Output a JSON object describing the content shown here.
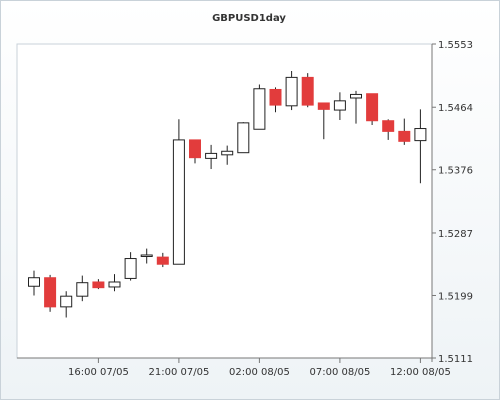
{
  "chart_data": {
    "type": "candlestick",
    "title": "GBPUSD1day",
    "y_ticks": [
      "1.5553",
      "1.5464",
      "1.5376",
      "1.5287",
      "1.5199",
      "1.5111"
    ],
    "y_tick_values": [
      1.5553,
      1.5464,
      1.5376,
      1.5287,
      1.5199,
      1.5111
    ],
    "ylim": [
      1.5111,
      1.5553
    ],
    "x_ticks": [
      "16:00 07/05",
      "21:00 07/05",
      "02:00 08/05",
      "07:00 08/05",
      "12:00 08/05"
    ],
    "x_tick_bar_index": [
      4,
      9,
      14,
      19,
      24
    ],
    "grid": true,
    "colors": {
      "up": "#ffffff",
      "down": "#e23c3c",
      "outline": "#222222",
      "grid": "#8fd3d3"
    },
    "candles": [
      {
        "open": 1.5212,
        "high": 1.5234,
        "low": 1.5199,
        "close": 1.5224
      },
      {
        "open": 1.5224,
        "high": 1.5228,
        "low": 1.5176,
        "close": 1.5183
      },
      {
        "open": 1.5183,
        "high": 1.5205,
        "low": 1.5168,
        "close": 1.5198
      },
      {
        "open": 1.5198,
        "high": 1.5227,
        "low": 1.5191,
        "close": 1.5217
      },
      {
        "open": 1.5218,
        "high": 1.5222,
        "low": 1.5208,
        "close": 1.521
      },
      {
        "open": 1.5211,
        "high": 1.5229,
        "low": 1.5205,
        "close": 1.5218
      },
      {
        "open": 1.5223,
        "high": 1.526,
        "low": 1.522,
        "close": 1.5251
      },
      {
        "open": 1.5254,
        "high": 1.5265,
        "low": 1.5244,
        "close": 1.5256
      },
      {
        "open": 1.5253,
        "high": 1.5259,
        "low": 1.5239,
        "close": 1.5243
      },
      {
        "open": 1.5243,
        "high": 1.5447,
        "low": 1.5243,
        "close": 1.5418
      },
      {
        "open": 1.5418,
        "high": 1.5418,
        "low": 1.5385,
        "close": 1.5393
      },
      {
        "open": 1.5392,
        "high": 1.5411,
        "low": 1.5377,
        "close": 1.5399
      },
      {
        "open": 1.5397,
        "high": 1.541,
        "low": 1.5383,
        "close": 1.5402
      },
      {
        "open": 1.54,
        "high": 1.5443,
        "low": 1.54,
        "close": 1.5442
      },
      {
        "open": 1.5433,
        "high": 1.5496,
        "low": 1.5433,
        "close": 1.549
      },
      {
        "open": 1.5489,
        "high": 1.5492,
        "low": 1.5457,
        "close": 1.5467
      },
      {
        "open": 1.5466,
        "high": 1.5515,
        "low": 1.546,
        "close": 1.5506
      },
      {
        "open": 1.5506,
        "high": 1.5512,
        "low": 1.5464,
        "close": 1.5467
      },
      {
        "open": 1.547,
        "high": 1.547,
        "low": 1.5419,
        "close": 1.5461
      },
      {
        "open": 1.546,
        "high": 1.5485,
        "low": 1.5446,
        "close": 1.5473
      },
      {
        "open": 1.5477,
        "high": 1.5487,
        "low": 1.5441,
        "close": 1.5482
      },
      {
        "open": 1.5483,
        "high": 1.5483,
        "low": 1.5439,
        "close": 1.5445
      },
      {
        "open": 1.5445,
        "high": 1.5447,
        "low": 1.5418,
        "close": 1.543
      },
      {
        "open": 1.543,
        "high": 1.5448,
        "low": 1.5411,
        "close": 1.5416
      },
      {
        "open": 1.5417,
        "high": 1.5461,
        "low": 1.5357,
        "close": 1.5434
      }
    ]
  }
}
